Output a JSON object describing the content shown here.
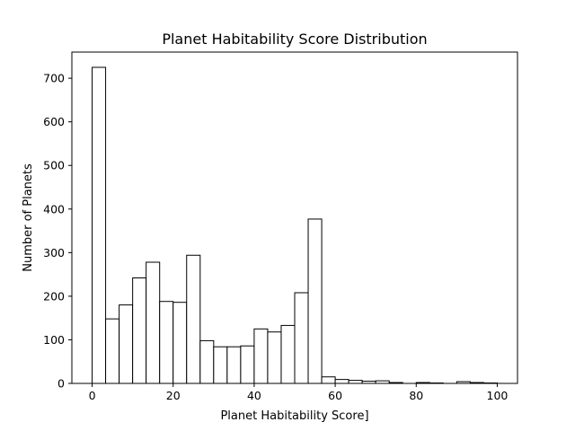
{
  "chart_data": {
    "type": "bar",
    "title": "Planet Habitability Score Distribution",
    "xlabel": "Planet Habitability Score]",
    "ylabel": "Number of Planets",
    "xlim": [
      -5,
      105
    ],
    "ylim": [
      0,
      760
    ],
    "xticks": [
      0,
      20,
      40,
      60,
      80,
      100
    ],
    "yticks": [
      0,
      100,
      200,
      300,
      400,
      500,
      600,
      700
    ],
    "grid": false,
    "bar_fill": "#ffffff",
    "bar_edge": "#000000",
    "bins": [
      {
        "x0": 0.0,
        "x1": 3.33,
        "value": 725
      },
      {
        "x0": 3.33,
        "x1": 6.67,
        "value": 148
      },
      {
        "x0": 6.67,
        "x1": 10.0,
        "value": 180
      },
      {
        "x0": 10.0,
        "x1": 13.33,
        "value": 242
      },
      {
        "x0": 13.33,
        "x1": 16.67,
        "value": 278
      },
      {
        "x0": 16.67,
        "x1": 20.0,
        "value": 188
      },
      {
        "x0": 20.0,
        "x1": 23.33,
        "value": 186
      },
      {
        "x0": 23.33,
        "x1": 26.67,
        "value": 294
      },
      {
        "x0": 26.67,
        "x1": 30.0,
        "value": 98
      },
      {
        "x0": 30.0,
        "x1": 33.33,
        "value": 84
      },
      {
        "x0": 33.33,
        "x1": 36.67,
        "value": 84
      },
      {
        "x0": 36.67,
        "x1": 40.0,
        "value": 86
      },
      {
        "x0": 40.0,
        "x1": 43.33,
        "value": 125
      },
      {
        "x0": 43.33,
        "x1": 46.67,
        "value": 118
      },
      {
        "x0": 46.67,
        "x1": 50.0,
        "value": 133
      },
      {
        "x0": 50.0,
        "x1": 53.33,
        "value": 208
      },
      {
        "x0": 53.33,
        "x1": 56.67,
        "value": 377
      },
      {
        "x0": 56.67,
        "x1": 60.0,
        "value": 15
      },
      {
        "x0": 60.0,
        "x1": 63.33,
        "value": 9
      },
      {
        "x0": 63.33,
        "x1": 66.67,
        "value": 7
      },
      {
        "x0": 66.67,
        "x1": 70.0,
        "value": 5
      },
      {
        "x0": 70.0,
        "x1": 73.33,
        "value": 6
      },
      {
        "x0": 73.33,
        "x1": 76.67,
        "value": 2
      },
      {
        "x0": 76.67,
        "x1": 80.0,
        "value": 0
      },
      {
        "x0": 80.0,
        "x1": 83.33,
        "value": 2
      },
      {
        "x0": 83.33,
        "x1": 86.67,
        "value": 1
      },
      {
        "x0": 86.67,
        "x1": 90.0,
        "value": 0
      },
      {
        "x0": 90.0,
        "x1": 93.33,
        "value": 4
      },
      {
        "x0": 93.33,
        "x1": 96.67,
        "value": 2
      },
      {
        "x0": 96.67,
        "x1": 100.0,
        "value": 1
      }
    ]
  }
}
